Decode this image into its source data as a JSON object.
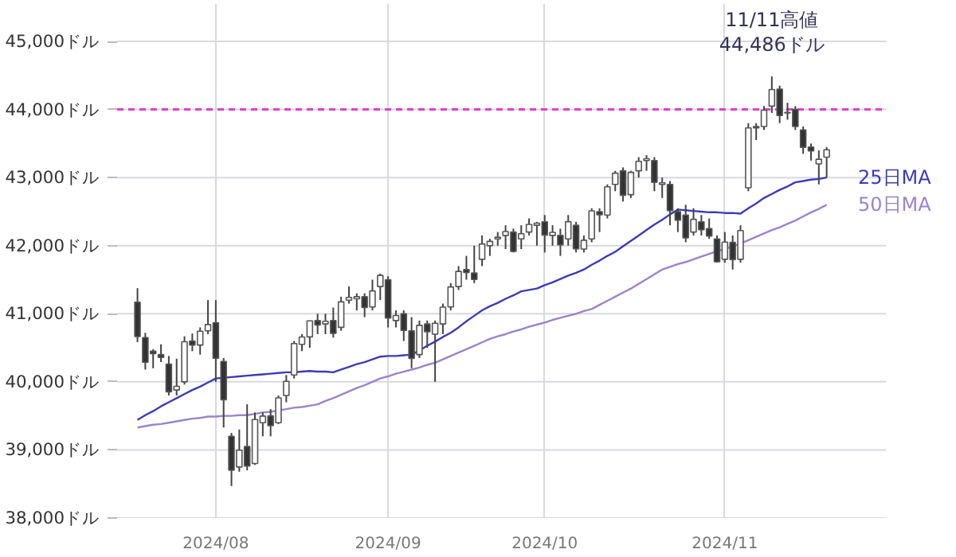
{
  "chart_data": {
    "type": "candlestick",
    "categories": [
      null,
      null,
      null,
      null,
      null,
      null,
      null,
      null,
      null,
      null,
      "2024/08",
      null,
      null,
      null,
      null,
      null,
      null,
      null,
      null,
      null,
      null,
      null,
      null,
      null,
      null,
      null,
      null,
      null,
      null,
      null,
      null,
      null,
      "2024/09",
      null,
      null,
      null,
      null,
      null,
      null,
      null,
      null,
      null,
      null,
      null,
      null,
      null,
      null,
      null,
      null,
      null,
      null,
      null,
      "2024/10",
      null,
      null,
      null,
      null,
      null,
      null,
      null,
      null,
      null,
      null,
      null,
      null,
      null,
      null,
      null,
      null,
      null,
      null,
      null,
      null,
      null,
      null,
      "2024/11",
      null,
      null,
      null,
      null,
      null,
      null,
      null,
      null,
      null,
      null,
      null,
      null,
      null
    ],
    "ohlc": [
      [
        41170,
        41376,
        40583,
        40665
      ],
      [
        40650,
        40720,
        40180,
        40287
      ],
      [
        40450,
        40480,
        40200,
        40415
      ],
      [
        40400,
        40550,
        40290,
        40358
      ],
      [
        40260,
        40380,
        39800,
        39853
      ],
      [
        39880,
        40340,
        39800,
        39935
      ],
      [
        40000,
        40670,
        39960,
        40589
      ],
      [
        40600,
        40710,
        40450,
        40539
      ],
      [
        40540,
        40800,
        40400,
        40743
      ],
      [
        40750,
        41200,
        40700,
        40842
      ],
      [
        40870,
        41200,
        40000,
        40347
      ],
      [
        40300,
        40350,
        39330,
        39737
      ],
      [
        39200,
        39250,
        38470,
        38703
      ],
      [
        38750,
        39300,
        38680,
        38997
      ],
      [
        39050,
        39670,
        38700,
        38763
      ],
      [
        38800,
        39550,
        38780,
        39446
      ],
      [
        39400,
        39550,
        39200,
        39497
      ],
      [
        39500,
        39600,
        39200,
        39357
      ],
      [
        39400,
        39800,
        39380,
        39765
      ],
      [
        39800,
        40100,
        39700,
        40008
      ],
      [
        40100,
        40600,
        40050,
        40563
      ],
      [
        40550,
        40700,
        40450,
        40659
      ],
      [
        40660,
        40900,
        40500,
        40896
      ],
      [
        40900,
        41000,
        40700,
        40834
      ],
      [
        40850,
        41000,
        40700,
        40890
      ],
      [
        40900,
        41090,
        40650,
        40712
      ],
      [
        40800,
        41250,
        40750,
        41175
      ],
      [
        41200,
        41400,
        41150,
        41240
      ],
      [
        41220,
        41300,
        41050,
        41250
      ],
      [
        41250,
        41300,
        40950,
        41091
      ],
      [
        41100,
        41500,
        41050,
        41335
      ],
      [
        41400,
        41590,
        41200,
        41563
      ],
      [
        41500,
        41550,
        40800,
        40937
      ],
      [
        40900,
        41050,
        40800,
        40975
      ],
      [
        41000,
        41050,
        40600,
        40755
      ],
      [
        40750,
        40950,
        40200,
        40345
      ],
      [
        40400,
        40900,
        40350,
        40830
      ],
      [
        40850,
        40900,
        40500,
        40736
      ],
      [
        40700,
        40900,
        40000,
        40861
      ],
      [
        40850,
        41150,
        40700,
        41097
      ],
      [
        41100,
        41450,
        41050,
        41394
      ],
      [
        41400,
        41700,
        41350,
        41622
      ],
      [
        41650,
        41850,
        41500,
        41606
      ],
      [
        41600,
        42000,
        41450,
        41503
      ],
      [
        41800,
        42150,
        41700,
        42025
      ],
      [
        42000,
        42100,
        41850,
        42063
      ],
      [
        42100,
        42200,
        42000,
        42124
      ],
      [
        42150,
        42300,
        41950,
        42208
      ],
      [
        42200,
        42250,
        41900,
        41915
      ],
      [
        42100,
        42300,
        41950,
        42175
      ],
      [
        42200,
        42400,
        42150,
        42313
      ],
      [
        42300,
        42350,
        42000,
        42330
      ],
      [
        42350,
        42450,
        41900,
        42156
      ],
      [
        42150,
        42300,
        42000,
        42196
      ],
      [
        42150,
        42250,
        41850,
        42011
      ],
      [
        42100,
        42450,
        42000,
        42352
      ],
      [
        42300,
        42350,
        41900,
        41954
      ],
      [
        41950,
        42150,
        41900,
        42080
      ],
      [
        42100,
        42550,
        42050,
        42512
      ],
      [
        42500,
        42550,
        42200,
        42454
      ],
      [
        42450,
        42900,
        42400,
        42864
      ],
      [
        42900,
        43100,
        42800,
        43065
      ],
      [
        43100,
        43150,
        42650,
        42740
      ],
      [
        42750,
        43100,
        42700,
        43077
      ],
      [
        43100,
        43300,
        43000,
        43239
      ],
      [
        43250,
        43330,
        43100,
        43276
      ],
      [
        43250,
        43300,
        42800,
        42931
      ],
      [
        42900,
        43000,
        42700,
        42924
      ],
      [
        42900,
        42950,
        42300,
        42514
      ],
      [
        42500,
        42550,
        42200,
        42374
      ],
      [
        42450,
        42600,
        42050,
        42114
      ],
      [
        42200,
        42550,
        42150,
        42387
      ],
      [
        42350,
        42450,
        42150,
        42233
      ],
      [
        42250,
        42400,
        42100,
        42142
      ],
      [
        42100,
        42150,
        41750,
        41763
      ],
      [
        41800,
        42200,
        41750,
        42052
      ],
      [
        42050,
        42150,
        41650,
        41795
      ],
      [
        41800,
        42300,
        41750,
        42222
      ],
      [
        42850,
        43800,
        42800,
        43730
      ],
      [
        43750,
        43800,
        43550,
        43729
      ],
      [
        43750,
        44050,
        43700,
        43989
      ],
      [
        44050,
        44486,
        43950,
        44293
      ],
      [
        44300,
        44350,
        43800,
        43911
      ],
      [
        43950,
        44100,
        43850,
        43958
      ],
      [
        44000,
        44050,
        43700,
        43751
      ],
      [
        43700,
        43750,
        43350,
        43445
      ],
      [
        43450,
        43500,
        43250,
        43390
      ],
      [
        43200,
        43400,
        42900,
        43269
      ],
      [
        43300,
        43450,
        43000,
        43408
      ]
    ],
    "series": [
      {
        "name": "25日MA",
        "type": "line",
        "color": "#3c3cb4",
        "values": [
          39440,
          39510,
          39570,
          39640,
          39700,
          39760,
          39820,
          39880,
          39930,
          39990,
          40050,
          40060,
          40070,
          40080,
          40090,
          40100,
          40110,
          40120,
          40130,
          40140,
          40140,
          40150,
          40160,
          40150,
          40150,
          40140,
          40180,
          40220,
          40260,
          40290,
          40330,
          40370,
          40380,
          40380,
          40390,
          40400,
          40460,
          40530,
          40590,
          40660,
          40720,
          40800,
          40890,
          40970,
          41050,
          41110,
          41160,
          41220,
          41270,
          41330,
          41350,
          41370,
          41420,
          41460,
          41510,
          41560,
          41600,
          41650,
          41720,
          41780,
          41850,
          41910,
          41990,
          42070,
          42150,
          42230,
          42310,
          42380,
          42460,
          42530,
          42520,
          42510,
          42500,
          42490,
          42490,
          42480,
          42480,
          42470,
          42550,
          42620,
          42700,
          42760,
          42820,
          42870,
          42930,
          42950,
          42970,
          42980,
          43000
        ]
      },
      {
        "name": "50日MA",
        "type": "line",
        "color": "#9a84cc",
        "values": [
          39330,
          39350,
          39370,
          39380,
          39400,
          39420,
          39440,
          39460,
          39470,
          39490,
          39490,
          39500,
          39500,
          39510,
          39510,
          39530,
          39550,
          39560,
          39580,
          39600,
          39620,
          39630,
          39650,
          39670,
          39720,
          39760,
          39810,
          39860,
          39910,
          39950,
          40000,
          40050,
          40080,
          40120,
          40150,
          40180,
          40210,
          40250,
          40280,
          40330,
          40380,
          40430,
          40480,
          40530,
          40580,
          40630,
          40670,
          40700,
          40740,
          40770,
          40810,
          40840,
          40870,
          40910,
          40940,
          40970,
          41000,
          41040,
          41070,
          41130,
          41190,
          41250,
          41310,
          41370,
          41440,
          41510,
          41580,
          41650,
          41690,
          41730,
          41760,
          41800,
          41840,
          41880,
          41920,
          41950,
          41990,
          42030,
          42080,
          42130,
          42180,
          42230,
          42270,
          42320,
          42370,
          42430,
          42490,
          42540,
          42600
        ]
      }
    ],
    "ylim": [
      38000,
      45550
    ],
    "yticks": [
      {
        "value": 38000,
        "label": "38,000ドル"
      },
      {
        "value": 39000,
        "label": "39,000ドル"
      },
      {
        "value": 40000,
        "label": "40,000ドル"
      },
      {
        "value": 41000,
        "label": "41,000ドル"
      },
      {
        "value": 42000,
        "label": "42,000ドル"
      },
      {
        "value": 43000,
        "label": "43,000ドル"
      },
      {
        "value": 44000,
        "label": "44,000ドル"
      },
      {
        "value": 45000,
        "label": "45,000ドル"
      }
    ],
    "ref_lines": [
      {
        "axis": "y",
        "value": 44000,
        "color": "#e040c8",
        "line_style": "dashed"
      }
    ],
    "annotations": [
      {
        "text": "11/11高値\n44,486ドル",
        "y": 44486
      }
    ],
    "grid": true
  }
}
